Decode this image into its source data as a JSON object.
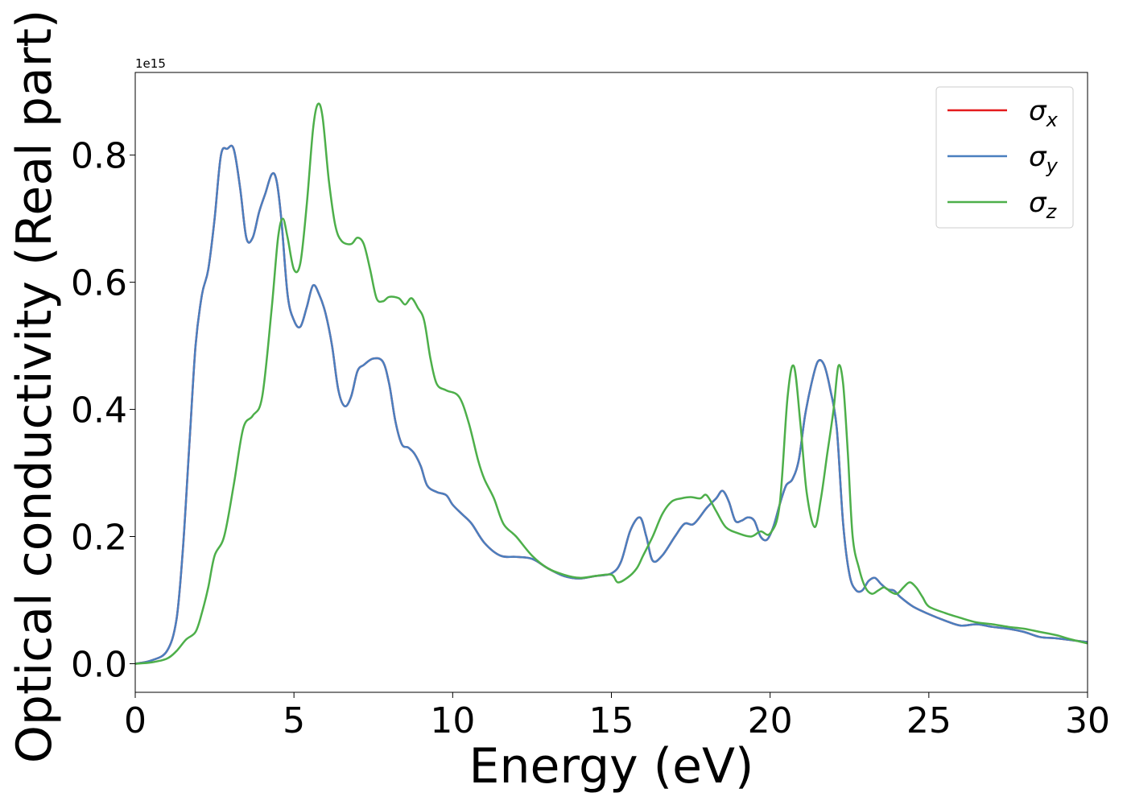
{
  "chart_data": {
    "type": "line",
    "title": "",
    "xlabel": "Energy (eV)",
    "ylabel": "Optical conductivity (Real part)",
    "y_offset_label": "1e15",
    "xlim": [
      0,
      30
    ],
    "ylim": [
      -0.045,
      0.93
    ],
    "xticks": [
      0,
      5,
      10,
      15,
      20,
      25,
      30
    ],
    "xtick_labels": [
      "0",
      "5",
      "10",
      "15",
      "20",
      "25",
      "30"
    ],
    "yticks": [
      0.0,
      0.2,
      0.4,
      0.6,
      0.8
    ],
    "ytick_labels": [
      "0.0",
      "0.2",
      "0.4",
      "0.6",
      "0.8"
    ],
    "grid": false,
    "legend_position": "top-right",
    "series": [
      {
        "name": "σx",
        "color": "#e41a1c",
        "x": [
          0,
          0.5,
          1.0,
          1.3,
          1.5,
          1.7,
          1.9,
          2.1,
          2.3,
          2.5,
          2.7,
          2.9,
          3.1,
          3.3,
          3.5,
          3.7,
          3.9,
          4.1,
          4.3,
          4.45,
          4.6,
          4.8,
          5.0,
          5.2,
          5.4,
          5.6,
          5.8,
          6.0,
          6.2,
          6.4,
          6.6,
          6.8,
          7.0,
          7.2,
          7.5,
          7.8,
          8.0,
          8.2,
          8.4,
          8.6,
          8.8,
          9.0,
          9.2,
          9.5,
          9.8,
          10.0,
          10.3,
          10.6,
          11.0,
          11.5,
          12.0,
          12.5,
          13.0,
          13.5,
          14.0,
          14.5,
          15.0,
          15.3,
          15.6,
          15.9,
          16.1,
          16.3,
          16.6,
          17.0,
          17.3,
          17.6,
          18.0,
          18.3,
          18.5,
          18.7,
          18.9,
          19.1,
          19.3,
          19.5,
          19.7,
          19.9,
          20.1,
          20.3,
          20.5,
          20.7,
          20.9,
          21.1,
          21.3,
          21.5,
          21.7,
          21.9,
          22.1,
          22.3,
          22.5,
          22.7,
          22.9,
          23.1,
          23.3,
          23.5,
          23.7,
          23.9,
          24.1,
          24.5,
          25.0,
          25.5,
          26.0,
          26.5,
          27.0,
          27.5,
          28.0,
          28.5,
          29.0,
          29.5,
          30.0
        ],
        "y": [
          0.0,
          0.005,
          0.02,
          0.07,
          0.18,
          0.34,
          0.5,
          0.58,
          0.62,
          0.7,
          0.8,
          0.81,
          0.81,
          0.75,
          0.67,
          0.67,
          0.71,
          0.74,
          0.77,
          0.76,
          0.7,
          0.58,
          0.54,
          0.53,
          0.56,
          0.595,
          0.58,
          0.55,
          0.5,
          0.43,
          0.405,
          0.42,
          0.46,
          0.47,
          0.48,
          0.475,
          0.44,
          0.38,
          0.345,
          0.34,
          0.33,
          0.31,
          0.28,
          0.27,
          0.265,
          0.25,
          0.235,
          0.22,
          0.19,
          0.17,
          0.168,
          0.165,
          0.15,
          0.138,
          0.134,
          0.138,
          0.142,
          0.16,
          0.21,
          0.23,
          0.2,
          0.162,
          0.17,
          0.2,
          0.22,
          0.22,
          0.245,
          0.26,
          0.272,
          0.255,
          0.225,
          0.225,
          0.23,
          0.225,
          0.2,
          0.195,
          0.215,
          0.25,
          0.28,
          0.29,
          0.32,
          0.39,
          0.44,
          0.475,
          0.47,
          0.43,
          0.37,
          0.22,
          0.14,
          0.116,
          0.115,
          0.13,
          0.135,
          0.125,
          0.117,
          0.115,
          0.105,
          0.09,
          0.078,
          0.068,
          0.06,
          0.062,
          0.058,
          0.055,
          0.05,
          0.042,
          0.04,
          0.037,
          0.034
        ]
      },
      {
        "name": "σy",
        "color": "#4a7fbf",
        "x": [
          0,
          0.5,
          1.0,
          1.3,
          1.5,
          1.7,
          1.9,
          2.1,
          2.3,
          2.5,
          2.7,
          2.9,
          3.1,
          3.3,
          3.5,
          3.7,
          3.9,
          4.1,
          4.3,
          4.45,
          4.6,
          4.8,
          5.0,
          5.2,
          5.4,
          5.6,
          5.8,
          6.0,
          6.2,
          6.4,
          6.6,
          6.8,
          7.0,
          7.2,
          7.5,
          7.8,
          8.0,
          8.2,
          8.4,
          8.6,
          8.8,
          9.0,
          9.2,
          9.5,
          9.8,
          10.0,
          10.3,
          10.6,
          11.0,
          11.5,
          12.0,
          12.5,
          13.0,
          13.5,
          14.0,
          14.5,
          15.0,
          15.3,
          15.6,
          15.9,
          16.1,
          16.3,
          16.6,
          17.0,
          17.3,
          17.6,
          18.0,
          18.3,
          18.5,
          18.7,
          18.9,
          19.1,
          19.3,
          19.5,
          19.7,
          19.9,
          20.1,
          20.3,
          20.5,
          20.7,
          20.9,
          21.1,
          21.3,
          21.5,
          21.7,
          21.9,
          22.1,
          22.3,
          22.5,
          22.7,
          22.9,
          23.1,
          23.3,
          23.5,
          23.7,
          23.9,
          24.1,
          24.5,
          25.0,
          25.5,
          26.0,
          26.5,
          27.0,
          27.5,
          28.0,
          28.5,
          29.0,
          29.5,
          30.0
        ],
        "y": [
          0.0,
          0.005,
          0.02,
          0.07,
          0.18,
          0.34,
          0.5,
          0.58,
          0.62,
          0.7,
          0.8,
          0.81,
          0.81,
          0.75,
          0.67,
          0.67,
          0.71,
          0.74,
          0.77,
          0.76,
          0.7,
          0.58,
          0.54,
          0.53,
          0.56,
          0.595,
          0.58,
          0.55,
          0.5,
          0.43,
          0.405,
          0.42,
          0.46,
          0.47,
          0.48,
          0.475,
          0.44,
          0.38,
          0.345,
          0.34,
          0.33,
          0.31,
          0.28,
          0.27,
          0.265,
          0.25,
          0.235,
          0.22,
          0.19,
          0.17,
          0.168,
          0.165,
          0.15,
          0.138,
          0.134,
          0.138,
          0.142,
          0.16,
          0.21,
          0.23,
          0.2,
          0.162,
          0.17,
          0.2,
          0.22,
          0.22,
          0.245,
          0.26,
          0.272,
          0.255,
          0.225,
          0.225,
          0.23,
          0.225,
          0.2,
          0.195,
          0.215,
          0.25,
          0.28,
          0.29,
          0.32,
          0.39,
          0.44,
          0.475,
          0.47,
          0.43,
          0.37,
          0.22,
          0.14,
          0.116,
          0.115,
          0.13,
          0.135,
          0.125,
          0.117,
          0.115,
          0.105,
          0.09,
          0.078,
          0.068,
          0.06,
          0.062,
          0.058,
          0.055,
          0.05,
          0.042,
          0.04,
          0.037,
          0.034
        ]
      },
      {
        "name": "σz",
        "color": "#4daf4a",
        "x": [
          0,
          0.5,
          1.0,
          1.3,
          1.6,
          1.9,
          2.1,
          2.3,
          2.5,
          2.8,
          3.1,
          3.4,
          3.7,
          4.0,
          4.3,
          4.5,
          4.65,
          4.8,
          5.0,
          5.2,
          5.4,
          5.6,
          5.75,
          5.9,
          6.1,
          6.3,
          6.5,
          6.8,
          7.0,
          7.2,
          7.4,
          7.6,
          7.8,
          8.0,
          8.3,
          8.5,
          8.7,
          8.9,
          9.1,
          9.3,
          9.5,
          9.8,
          10.2,
          10.5,
          10.8,
          11.0,
          11.3,
          11.6,
          12.0,
          12.5,
          13.0,
          13.5,
          14.0,
          14.5,
          15.0,
          15.2,
          15.5,
          15.8,
          16.0,
          16.3,
          16.6,
          16.9,
          17.2,
          17.5,
          17.8,
          18.0,
          18.3,
          18.6,
          19.0,
          19.4,
          19.7,
          20.0,
          20.3,
          20.55,
          20.75,
          20.95,
          21.15,
          21.4,
          21.6,
          21.8,
          22.0,
          22.15,
          22.3,
          22.45,
          22.6,
          22.8,
          23.0,
          23.2,
          23.4,
          23.6,
          23.8,
          24.0,
          24.2,
          24.4,
          24.6,
          24.8,
          25.0,
          25.5,
          26.0,
          26.5,
          27.0,
          27.5,
          28.0,
          28.5,
          29.0,
          29.5,
          30.0
        ],
        "y": [
          0.0,
          0.002,
          0.008,
          0.02,
          0.038,
          0.05,
          0.08,
          0.12,
          0.17,
          0.2,
          0.28,
          0.37,
          0.39,
          0.42,
          0.56,
          0.67,
          0.7,
          0.67,
          0.62,
          0.63,
          0.72,
          0.84,
          0.88,
          0.86,
          0.76,
          0.69,
          0.665,
          0.66,
          0.67,
          0.66,
          0.62,
          0.575,
          0.57,
          0.577,
          0.575,
          0.565,
          0.575,
          0.56,
          0.54,
          0.48,
          0.44,
          0.43,
          0.42,
          0.38,
          0.32,
          0.29,
          0.26,
          0.22,
          0.2,
          0.17,
          0.15,
          0.14,
          0.135,
          0.138,
          0.14,
          0.128,
          0.135,
          0.15,
          0.17,
          0.2,
          0.235,
          0.255,
          0.26,
          0.262,
          0.26,
          0.265,
          0.24,
          0.215,
          0.205,
          0.2,
          0.208,
          0.205,
          0.25,
          0.42,
          0.468,
          0.38,
          0.27,
          0.215,
          0.26,
          0.33,
          0.4,
          0.468,
          0.44,
          0.33,
          0.2,
          0.15,
          0.12,
          0.11,
          0.115,
          0.12,
          0.113,
          0.11,
          0.12,
          0.128,
          0.12,
          0.105,
          0.09,
          0.08,
          0.072,
          0.065,
          0.062,
          0.058,
          0.055,
          0.05,
          0.045,
          0.038,
          0.032
        ]
      }
    ]
  }
}
